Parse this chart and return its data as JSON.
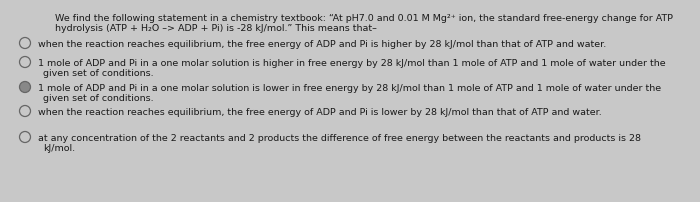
{
  "background_color": "#c8c8c8",
  "text_color": "#1a1a1a",
  "font_size_body": 6.8,
  "intro_line1": "We find the following statement in a chemistry textbook: “At pH7.0 and 0.01 M Mg²⁺ ion, the standard free-energy change for ATP",
  "intro_line2": "hydrolysis (ATP + H₂O –> ADP + Pi) is -28 kJ/mol.” This means that–",
  "options": [
    {
      "line1": "when the reaction reaches equilibrium, the free energy of ADP and Pi is higher by 28 kJ/mol than that of ATP and water.",
      "line2": null,
      "selected": false
    },
    {
      "line1": "1 mole of ADP and Pi in a one molar solution is higher in free energy by 28 kJ/mol than 1 mole of ATP and 1 mole of water under the",
      "line2": "given set of conditions.",
      "selected": false
    },
    {
      "line1": "1 mole of ADP and Pi in a one molar solution is lower in free energy by 28 kJ/mol than 1 mole of ATP and 1 mole of water under the",
      "line2": "given set of conditions.",
      "selected": true
    },
    {
      "line1": "when the reaction reaches equilibrium, the free energy of ADP and Pi is lower by 28 kJ/mol than that of ATP and water.",
      "line2": null,
      "selected": false
    },
    {
      "line1": "at any concentration of the 2 reactants and 2 products the difference of free energy between the reactants and products is 28",
      "line2": "kJ/mol.",
      "selected": false
    }
  ]
}
